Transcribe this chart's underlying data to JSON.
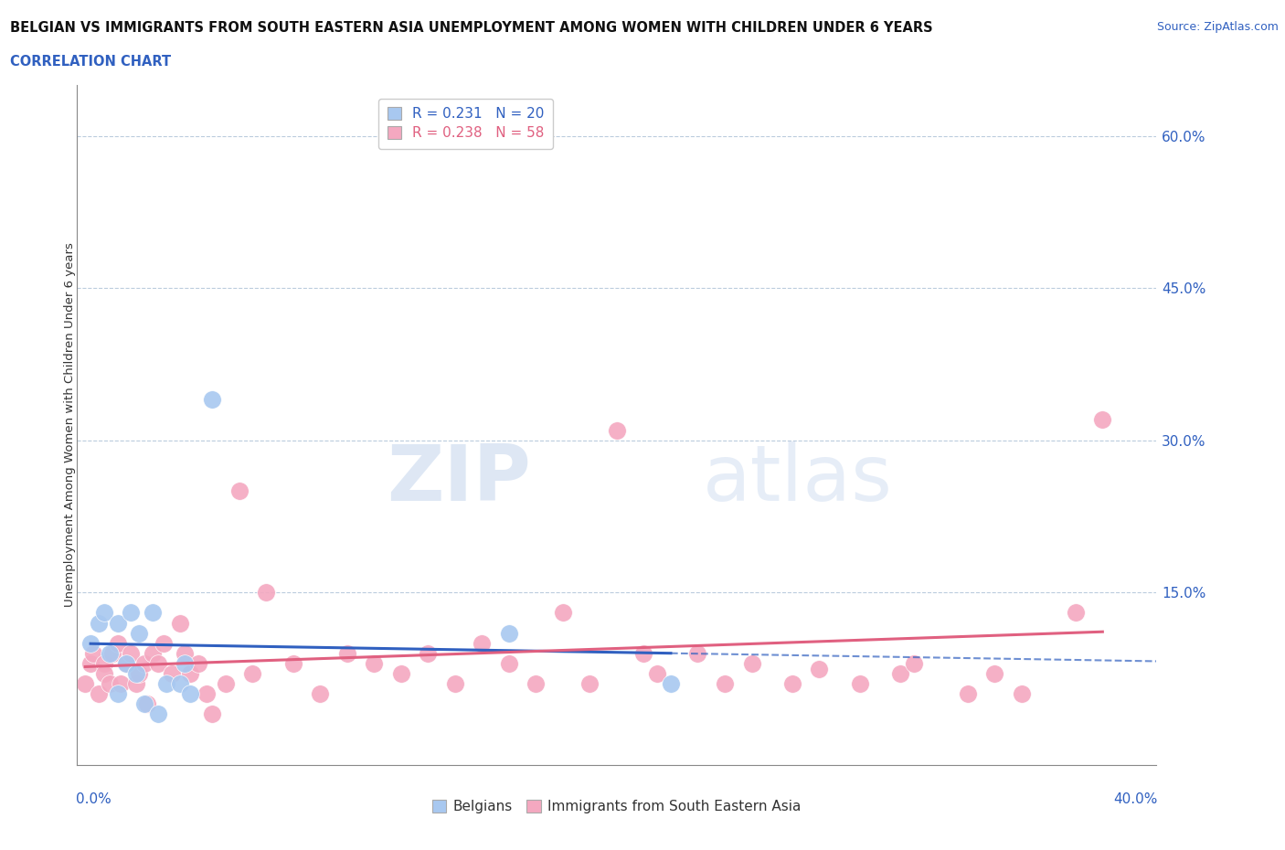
{
  "title_line1": "BELGIAN VS IMMIGRANTS FROM SOUTH EASTERN ASIA UNEMPLOYMENT AMONG WOMEN WITH CHILDREN UNDER 6 YEARS",
  "title_line2": "CORRELATION CHART",
  "source": "Source: ZipAtlas.com",
  "ylabel": "Unemployment Among Women with Children Under 6 years",
  "xlim": [
    0.0,
    0.4
  ],
  "ylim": [
    -0.02,
    0.65
  ],
  "belgian_R": 0.231,
  "belgian_N": 20,
  "immigrant_R": 0.238,
  "immigrant_N": 58,
  "belgian_color": "#A8C8F0",
  "immigrant_color": "#F4A8C0",
  "belgian_line_color": "#3060C0",
  "immigrant_line_color": "#E06080",
  "background_color": "#FFFFFF",
  "grid_color": "#BBCCDD",
  "belgian_x": [
    0.005,
    0.008,
    0.01,
    0.012,
    0.015,
    0.015,
    0.018,
    0.02,
    0.022,
    0.023,
    0.025,
    0.028,
    0.03,
    0.033,
    0.038,
    0.04,
    0.042,
    0.05,
    0.16,
    0.22
  ],
  "belgian_y": [
    0.1,
    0.12,
    0.13,
    0.09,
    0.12,
    0.05,
    0.08,
    0.13,
    0.07,
    0.11,
    0.04,
    0.13,
    0.03,
    0.06,
    0.06,
    0.08,
    0.05,
    0.34,
    0.11,
    0.06
  ],
  "immigrant_x": [
    0.003,
    0.005,
    0.006,
    0.008,
    0.01,
    0.01,
    0.012,
    0.013,
    0.015,
    0.016,
    0.018,
    0.02,
    0.022,
    0.023,
    0.025,
    0.026,
    0.028,
    0.03,
    0.032,
    0.035,
    0.038,
    0.04,
    0.042,
    0.045,
    0.048,
    0.05,
    0.055,
    0.06,
    0.065,
    0.07,
    0.08,
    0.09,
    0.1,
    0.11,
    0.12,
    0.13,
    0.14,
    0.15,
    0.16,
    0.17,
    0.18,
    0.19,
    0.2,
    0.21,
    0.215,
    0.23,
    0.24,
    0.25,
    0.265,
    0.275,
    0.29,
    0.305,
    0.31,
    0.33,
    0.34,
    0.35,
    0.37,
    0.38
  ],
  "immigrant_y": [
    0.06,
    0.08,
    0.09,
    0.05,
    0.08,
    0.07,
    0.06,
    0.09,
    0.1,
    0.06,
    0.08,
    0.09,
    0.06,
    0.07,
    0.08,
    0.04,
    0.09,
    0.08,
    0.1,
    0.07,
    0.12,
    0.09,
    0.07,
    0.08,
    0.05,
    0.03,
    0.06,
    0.25,
    0.07,
    0.15,
    0.08,
    0.05,
    0.09,
    0.08,
    0.07,
    0.09,
    0.06,
    0.1,
    0.08,
    0.06,
    0.13,
    0.06,
    0.31,
    0.09,
    0.07,
    0.09,
    0.06,
    0.08,
    0.06,
    0.075,
    0.06,
    0.07,
    0.08,
    0.05,
    0.07,
    0.05,
    0.13,
    0.32
  ]
}
